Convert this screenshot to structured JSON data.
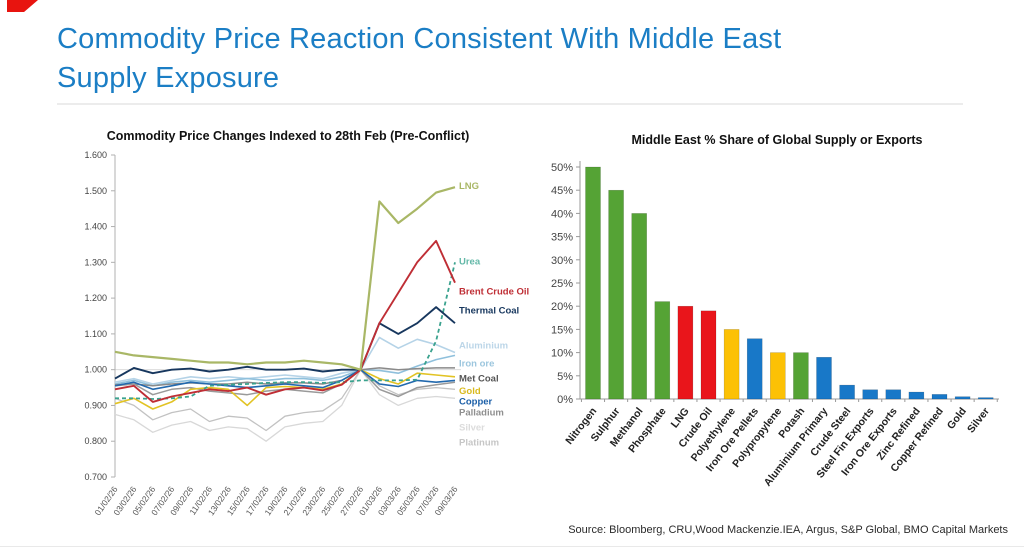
{
  "slide": {
    "title_line1": "Commodity Price Reaction Consistent With Middle East",
    "title_line2": "Supply Exposure",
    "title_color": "#1b7ec5",
    "accent_red": "#e8140f",
    "source": "Source: Bloomberg, CRU,Wood Mackenzie.IEA, Argus, S&P Global, BMO Capital Markets"
  },
  "chart_data": [
    {
      "type": "line",
      "title": "Commodity Price Changes Indexed to 28th Feb (Pre-Conflict)",
      "x": [
        "01/02/26",
        "03/02/26",
        "05/02/26",
        "07/02/26",
        "09/02/26",
        "11/02/26",
        "13/02/26",
        "15/02/26",
        "17/02/26",
        "19/02/26",
        "21/02/26",
        "23/02/26",
        "25/02/26",
        "27/02/26",
        "01/03/26",
        "03/03/26",
        "05/03/26",
        "07/03/26",
        "09/03/26"
      ],
      "ylim": [
        0.7,
        1.6
      ],
      "yticks": [
        "1.600",
        "1.500",
        "1.400",
        "1.300",
        "1.200",
        "1.100",
        "1.000",
        "0.900",
        "0.800",
        "0.700"
      ],
      "gridline_at": 1.0,
      "legend_position": "right-of-lines",
      "series": [
        {
          "name": "Silver",
          "color": "#d8d8d8",
          "label_color": "#dcdcdc",
          "dash": false,
          "width": 1.3,
          "label_v": 0.838,
          "values": [
            0.875,
            0.86,
            0.825,
            0.845,
            0.855,
            0.83,
            0.84,
            0.835,
            0.8,
            0.84,
            0.85,
            0.855,
            0.9,
            1.0,
            0.93,
            0.9,
            0.92,
            0.925,
            0.92
          ]
        },
        {
          "name": "Platinum",
          "color": "#c2c2c2",
          "label_color": "#c6c6c6",
          "dash": false,
          "width": 1.3,
          "label_v": 0.796,
          "values": [
            0.92,
            0.9,
            0.86,
            0.88,
            0.89,
            0.855,
            0.87,
            0.865,
            0.83,
            0.87,
            0.88,
            0.885,
            0.92,
            1.0,
            0.955,
            0.93,
            0.945,
            0.95,
            0.945
          ]
        },
        {
          "name": "Aluminium",
          "color": "#b5d3e7",
          "label_color": "#bcd6e8",
          "dash": false,
          "width": 1.6,
          "label_v": 1.067,
          "values": [
            0.965,
            0.975,
            0.96,
            0.97,
            0.98,
            0.975,
            0.98,
            0.975,
            0.98,
            0.985,
            0.98,
            0.975,
            0.99,
            1.0,
            1.09,
            1.06,
            1.085,
            1.07,
            1.048
          ]
        },
        {
          "name": "Iron ore",
          "color": "#8fc0dc",
          "label_color": "#9cc6de",
          "dash": false,
          "width": 1.6,
          "label_v": 1.017,
          "values": [
            0.96,
            0.97,
            0.955,
            0.965,
            0.97,
            0.965,
            0.97,
            0.975,
            0.97,
            0.975,
            0.975,
            0.97,
            0.98,
            1.0,
            0.998,
            0.99,
            1.01,
            1.028,
            1.04
          ]
        },
        {
          "name": "Met Coal",
          "color": "#8a8a8a",
          "label_color": "#555555",
          "dash": false,
          "width": 1.5,
          "label_v": 0.975,
          "values": [
            0.958,
            0.96,
            0.955,
            0.96,
            0.963,
            0.96,
            0.96,
            0.965,
            0.96,
            0.963,
            0.963,
            0.96,
            0.97,
            1.0,
            1.005,
            1.0,
            1.003,
            1.005,
            1.005
          ]
        },
        {
          "name": "Palladium",
          "color": "#9a9a9a",
          "label_color": "#8f8f8f",
          "dash": false,
          "width": 1.5,
          "label_v": 0.88,
          "values": [
            0.955,
            0.96,
            0.93,
            0.945,
            0.95,
            0.94,
            0.935,
            0.93,
            0.94,
            0.945,
            0.94,
            0.935,
            0.96,
            1.0,
            0.945,
            0.925,
            0.95,
            0.958,
            0.965
          ]
        },
        {
          "name": "Gold",
          "color": "#e2c324",
          "label_color": "#d9ba1e",
          "dash": false,
          "width": 1.6,
          "label_v": 0.941,
          "values": [
            0.905,
            0.92,
            0.89,
            0.91,
            0.945,
            0.95,
            0.945,
            0.9,
            0.95,
            0.953,
            0.95,
            0.945,
            0.96,
            1.0,
            0.975,
            0.96,
            0.99,
            0.985,
            0.98
          ]
        },
        {
          "name": "Copper",
          "color": "#2269ae",
          "label_color": "#1b5fa8",
          "dash": false,
          "width": 1.6,
          "label_v": 0.911,
          "values": [
            0.955,
            0.965,
            0.945,
            0.955,
            0.965,
            0.96,
            0.955,
            0.95,
            0.955,
            0.96,
            0.955,
            0.95,
            0.97,
            1.0,
            0.96,
            0.953,
            0.97,
            0.965,
            0.97
          ]
        },
        {
          "name": "Urea",
          "color": "#3da globally",
          "label_color": "#63b8a8",
          "dash": true,
          "width": 1.8,
          "label_v": 1.302,
          "values": [
            0.92,
            0.92,
            0.918,
            0.92,
            0.925,
            0.955,
            0.958,
            0.96,
            0.963,
            0.965,
            0.965,
            0.963,
            0.965,
            0.97,
            0.97,
            0.97,
            0.972,
            1.08,
            1.3
          ]
        },
        {
          "name": "Thermal Coal",
          "color": "#17375e",
          "label_color": "#17375e",
          "dash": false,
          "width": 1.9,
          "label_v": 1.165,
          "values": [
            0.975,
            1.005,
            0.99,
            1.0,
            1.003,
            0.995,
            1.0,
            1.008,
            1.0,
            1.0,
            1.003,
            0.995,
            1.0,
            1.0,
            1.13,
            1.1,
            1.13,
            1.175,
            1.13
          ]
        },
        {
          "name": "Brent Crude Oil",
          "color": "#bf2e35",
          "label_color": "#bf2e35",
          "dash": false,
          "width": 1.9,
          "label_v": 1.218,
          "values": [
            0.945,
            0.955,
            0.91,
            0.925,
            0.935,
            0.945,
            0.94,
            0.95,
            0.93,
            0.945,
            0.95,
            0.942,
            0.958,
            1.0,
            1.13,
            1.215,
            1.3,
            1.36,
            1.243
          ]
        },
        {
          "name": "LNG",
          "color": "#a9b766",
          "label_color": "#a9b766",
          "dash": false,
          "width": 2.2,
          "label_v": 1.514,
          "values": [
            1.05,
            1.04,
            1.035,
            1.03,
            1.025,
            1.02,
            1.02,
            1.015,
            1.02,
            1.02,
            1.025,
            1.02,
            1.015,
            1.0,
            1.47,
            1.41,
            1.45,
            1.495,
            1.51
          ]
        }
      ]
    },
    {
      "type": "bar",
      "title": "Middle East % Share of Global Supply or Exports",
      "categories": [
        "Nitrogen",
        "Sulphur",
        "Methanol",
        "Phosphate",
        "LNG",
        "Crude Oil",
        "Polyethylene",
        "Iron Ore Pellets",
        "Polypropylene",
        "Potash",
        "Aluminium Primary",
        "Crude Steel",
        "Steel Fin Exports",
        "Iron Ore Exports",
        "Zinc Refined",
        "Copper Refined",
        "Gold",
        "Silver"
      ],
      "values": [
        50,
        45,
        40,
        21,
        20,
        19,
        15,
        13,
        10,
        10,
        9,
        3,
        2,
        2,
        1.5,
        1,
        0.5,
        0.3
      ],
      "colors": [
        "#55a335",
        "#55a335",
        "#55a335",
        "#55a335",
        "#e9151b",
        "#e9151b",
        "#fcc105",
        "#1878c8",
        "#fcc105",
        "#55a335",
        "#1878c8",
        "#1878c8",
        "#1878c8",
        "#1878c8",
        "#1878c8",
        "#1878c8",
        "#1878c8",
        "#1878c8"
      ],
      "ylim": [
        0,
        50
      ],
      "yticks": [
        "0%",
        "5%",
        "10%",
        "15%",
        "20%",
        "25%",
        "30%",
        "35%",
        "40%",
        "45%",
        "50%"
      ],
      "grid": false
    }
  ]
}
